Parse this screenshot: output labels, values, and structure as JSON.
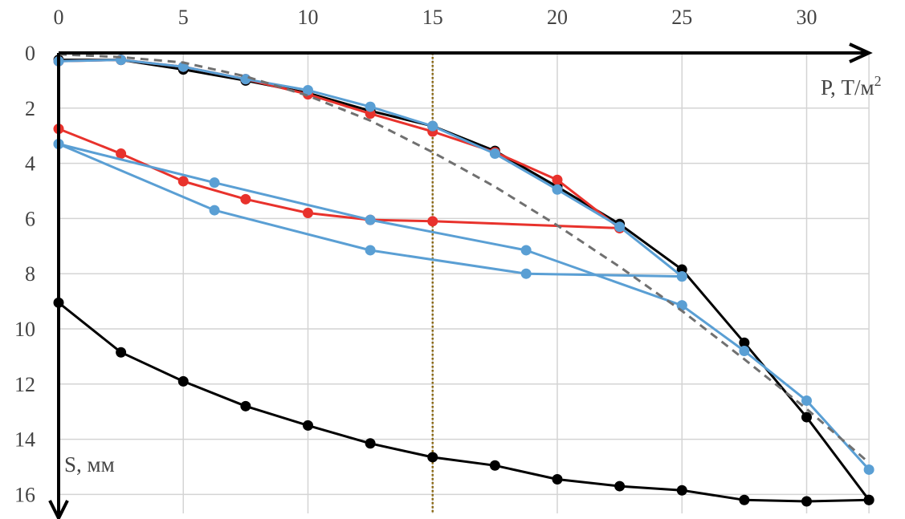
{
  "chart_data": {
    "type": "line",
    "xlabel": "P, Т/м",
    "xlabel_sup": "2",
    "ylabel": "S, мм",
    "xlim": [
      0,
      32.5
    ],
    "ylim": [
      0,
      16.5
    ],
    "y_inverted": true,
    "x_ticks": [
      0,
      5,
      10,
      15,
      20,
      25,
      30
    ],
    "y_ticks": [
      0,
      2,
      4,
      6,
      8,
      10,
      12,
      14,
      16
    ],
    "grid": true,
    "reference_line": {
      "x": 15,
      "color": "#8B6914",
      "style": "dotted"
    },
    "series": [
      {
        "color": "#000000",
        "style": "solid",
        "x": [
          0,
          2.5,
          5,
          7.5,
          10,
          12.5,
          15,
          17.5,
          20,
          22.5,
          25,
          27.5,
          30,
          32.5
        ],
        "y": [
          0.25,
          0.25,
          0.6,
          1.0,
          1.45,
          2.1,
          2.65,
          3.55,
          4.85,
          6.2,
          7.85,
          10.5,
          13.2,
          16.2
        ]
      },
      {
        "color": "#000000",
        "style": "solid",
        "x": [
          0,
          2.5,
          5,
          7.5,
          10,
          12.5,
          15,
          17.5,
          20,
          22.5,
          25,
          27.5,
          30,
          32.5
        ],
        "y": [
          9.05,
          10.85,
          11.9,
          12.8,
          13.5,
          14.15,
          14.65,
          14.95,
          15.45,
          15.7,
          15.85,
          16.2,
          16.25,
          16.2
        ]
      },
      {
        "color": "#E8322C",
        "style": "solid",
        "x": [
          0,
          2.5,
          5,
          7.5,
          10,
          12.5,
          15,
          17.5,
          20,
          22.5
        ],
        "y": [
          0.3,
          0.25,
          0.5,
          0.95,
          1.5,
          2.2,
          2.85,
          3.6,
          4.6,
          6.35
        ]
      },
      {
        "color": "#E8322C",
        "style": "solid",
        "x": [
          0,
          2.5,
          5,
          7.5,
          10,
          12.5,
          15,
          22.5
        ],
        "y": [
          2.75,
          3.65,
          4.65,
          5.3,
          5.8,
          6.05,
          6.1,
          6.35
        ]
      },
      {
        "color": "#5A9FD4",
        "style": "solid",
        "x": [
          0,
          2.5,
          5,
          7.5,
          10,
          12.5,
          15,
          17.5,
          20,
          22.5,
          25
        ],
        "y": [
          0.3,
          0.25,
          0.5,
          0.95,
          1.35,
          1.95,
          2.65,
          3.65,
          4.95,
          6.3,
          8.1
        ]
      },
      {
        "color": "#5A9FD4",
        "style": "solid",
        "x": [
          0,
          6.25,
          12.5,
          18.75,
          25
        ],
        "y": [
          3.3,
          4.7,
          6.05,
          7.15,
          9.15
        ]
      },
      {
        "color": "#5A9FD4",
        "style": "solid",
        "x": [
          0,
          6.25,
          12.5,
          18.75,
          25
        ],
        "y": [
          3.3,
          5.7,
          7.15,
          8.0,
          8.1
        ]
      },
      {
        "color": "#5A9FD4",
        "style": "solid",
        "x": [
          25,
          27.5,
          30,
          32.5
        ],
        "y": [
          9.15,
          10.8,
          12.6,
          15.1
        ]
      },
      {
        "color": "#707070",
        "style": "dashed",
        "markers": false,
        "x": [
          0,
          2.5,
          5,
          7.5,
          10,
          12.5,
          15,
          17.5,
          20,
          22.5,
          25,
          27.5,
          30,
          32.5
        ],
        "y": [
          0.05,
          0.15,
          0.35,
          0.85,
          1.55,
          2.45,
          3.6,
          4.85,
          6.25,
          7.75,
          9.35,
          11.1,
          12.9,
          14.85
        ]
      }
    ]
  }
}
